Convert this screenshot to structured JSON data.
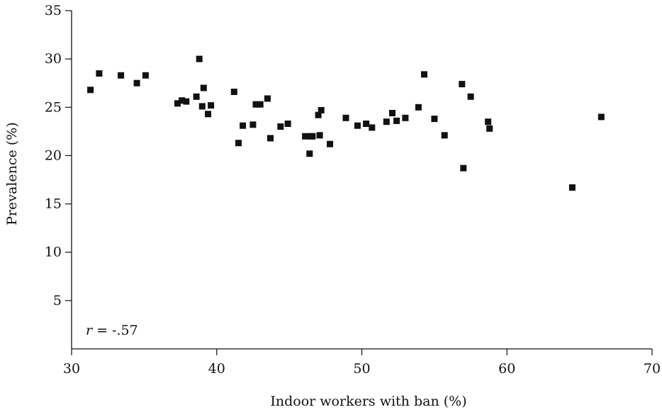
{
  "chart_data": {
    "type": "scatter",
    "title": "",
    "xlabel": "Indoor workers with ban (%)",
    "ylabel": "Prevalence (%)",
    "xlim": [
      30,
      70
    ],
    "ylim": [
      0,
      35
    ],
    "x_ticks": [
      "30",
      "40",
      "50",
      "60",
      "70"
    ],
    "y_ticks": [
      "5",
      "10",
      "15",
      "20",
      "25",
      "30",
      "35"
    ],
    "y_tick_values": [
      5,
      10,
      15,
      20,
      25,
      30,
      35
    ],
    "x_tick_values": [
      30,
      40,
      50,
      60,
      70
    ],
    "annotation": {
      "var": "r",
      "text": " = -.57"
    },
    "grid": false,
    "marker_color": "#111111",
    "points": [
      {
        "x": 31.3,
        "y": 26.8
      },
      {
        "x": 31.9,
        "y": 28.5
      },
      {
        "x": 33.4,
        "y": 28.3
      },
      {
        "x": 34.5,
        "y": 27.5
      },
      {
        "x": 35.1,
        "y": 28.3
      },
      {
        "x": 37.3,
        "y": 25.4
      },
      {
        "x": 37.6,
        "y": 25.7
      },
      {
        "x": 37.9,
        "y": 25.6
      },
      {
        "x": 38.6,
        "y": 26.1
      },
      {
        "x": 38.8,
        "y": 30.0
      },
      {
        "x": 39.0,
        "y": 25.1
      },
      {
        "x": 39.1,
        "y": 27.0
      },
      {
        "x": 39.4,
        "y": 24.3
      },
      {
        "x": 39.6,
        "y": 25.2
      },
      {
        "x": 41.2,
        "y": 26.6
      },
      {
        "x": 41.5,
        "y": 21.3
      },
      {
        "x": 41.8,
        "y": 23.1
      },
      {
        "x": 42.5,
        "y": 23.2
      },
      {
        "x": 42.7,
        "y": 25.3
      },
      {
        "x": 43.0,
        "y": 25.3
      },
      {
        "x": 43.5,
        "y": 25.9
      },
      {
        "x": 43.7,
        "y": 21.8
      },
      {
        "x": 44.4,
        "y": 23.0
      },
      {
        "x": 44.9,
        "y": 23.3
      },
      {
        "x": 46.1,
        "y": 22.0
      },
      {
        "x": 46.4,
        "y": 20.2
      },
      {
        "x": 46.5,
        "y": 22.0
      },
      {
        "x": 46.6,
        "y": 22.0
      },
      {
        "x": 47.0,
        "y": 24.2
      },
      {
        "x": 47.1,
        "y": 22.1
      },
      {
        "x": 47.2,
        "y": 24.7
      },
      {
        "x": 47.8,
        "y": 21.2
      },
      {
        "x": 48.9,
        "y": 23.9
      },
      {
        "x": 49.7,
        "y": 23.1
      },
      {
        "x": 50.3,
        "y": 23.3
      },
      {
        "x": 50.7,
        "y": 22.9
      },
      {
        "x": 51.7,
        "y": 23.5
      },
      {
        "x": 52.1,
        "y": 24.4
      },
      {
        "x": 52.4,
        "y": 23.6
      },
      {
        "x": 53.0,
        "y": 23.9
      },
      {
        "x": 53.9,
        "y": 25.0
      },
      {
        "x": 54.3,
        "y": 28.4
      },
      {
        "x": 55.0,
        "y": 23.8
      },
      {
        "x": 55.7,
        "y": 22.1
      },
      {
        "x": 56.9,
        "y": 27.4
      },
      {
        "x": 57.0,
        "y": 18.7
      },
      {
        "x": 57.5,
        "y": 26.1
      },
      {
        "x": 58.7,
        "y": 23.5
      },
      {
        "x": 58.8,
        "y": 22.8
      },
      {
        "x": 64.5,
        "y": 16.7
      },
      {
        "x": 66.5,
        "y": 24.0
      }
    ]
  }
}
